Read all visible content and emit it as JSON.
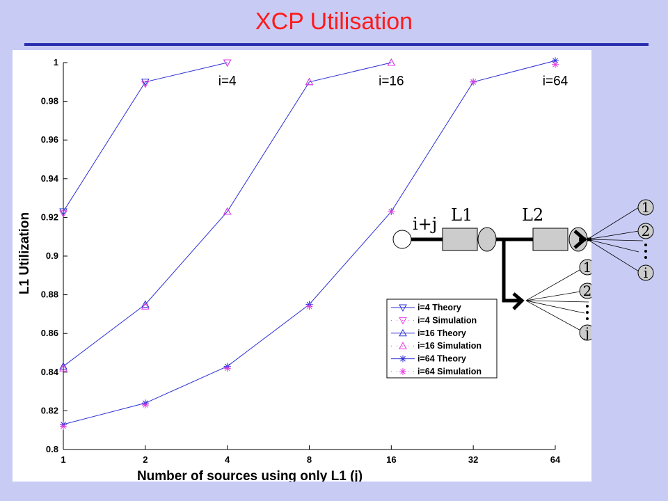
{
  "slide": {
    "title": "XCP Utilisation",
    "title_color": "#ff1a1a",
    "rule_color": "#2a2fb0",
    "background": "#c8ccf5"
  },
  "chart_data": {
    "type": "line",
    "xlabel": "Number of sources using only L1 (j)",
    "ylabel": "L1 Utilization",
    "x_scale": "log2",
    "x_ticks": [
      1,
      2,
      4,
      8,
      16,
      32,
      64
    ],
    "x_tick_labels": [
      "1",
      "2",
      "4",
      "8",
      "16",
      "32",
      "64"
    ],
    "ylim": [
      0.8,
      1.0
    ],
    "y_ticks": [
      0.8,
      0.82,
      0.84,
      0.86,
      0.88,
      0.9,
      0.92,
      0.94,
      0.96,
      0.98,
      1.0
    ],
    "y_tick_labels": [
      "0.8",
      "0.82",
      "0.84",
      "0.86",
      "0.88",
      "0.9",
      "0.92",
      "0.94",
      "0.96",
      "0.98",
      "1"
    ],
    "grid": false,
    "legend_position": "lower-right",
    "series": [
      {
        "name": "i=4 Theory",
        "style": "theory",
        "marker": "triangle-down",
        "color": "#2b2fd6",
        "x": [
          1,
          2,
          4
        ],
        "y": [
          0.923,
          0.99,
          1.0
        ]
      },
      {
        "name": "i=4 Simulation",
        "style": "simulation",
        "marker": "triangle-down",
        "color": "#e23be2",
        "x": [
          1,
          2,
          4
        ],
        "y": [
          0.922,
          0.989,
          1.0
        ]
      },
      {
        "name": "i=16 Theory",
        "style": "theory",
        "marker": "triangle-up",
        "color": "#2b2fd6",
        "x": [
          1,
          2,
          4,
          8,
          16
        ],
        "y": [
          0.843,
          0.875,
          0.923,
          0.99,
          1.0
        ]
      },
      {
        "name": "i=16 Simulation",
        "style": "simulation",
        "marker": "triangle-up",
        "color": "#e23be2",
        "x": [
          1,
          2,
          4,
          8,
          16
        ],
        "y": [
          0.842,
          0.874,
          0.923,
          0.99,
          1.0
        ]
      },
      {
        "name": "i=64 Theory",
        "style": "theory",
        "marker": "star",
        "color": "#2b2fd6",
        "x": [
          1,
          2,
          4,
          8,
          16,
          32,
          64
        ],
        "y": [
          0.813,
          0.824,
          0.843,
          0.875,
          0.923,
          0.99,
          1.001
        ]
      },
      {
        "name": "i=64 Simulation",
        "style": "simulation",
        "marker": "star",
        "color": "#e23be2",
        "x": [
          1,
          2,
          4,
          8,
          16,
          32,
          64
        ],
        "y": [
          0.812,
          0.823,
          0.842,
          0.874,
          0.923,
          0.99,
          0.999
        ]
      }
    ],
    "annotations": [
      {
        "text": "i=4",
        "x": 4,
        "y": 0.9905
      },
      {
        "text": "i=16",
        "x": 16,
        "y": 0.9905
      },
      {
        "text": "i=64",
        "x": 64,
        "y": 0.9905
      }
    ]
  },
  "diagram": {
    "source_label": "i+j",
    "link1_label": "L1",
    "link2_label": "L2",
    "upper_nodes": [
      "1",
      "2",
      "i"
    ],
    "lower_nodes": [
      "1",
      "2",
      "j"
    ],
    "node_fill": "#cccccc",
    "box_fill": "#cccccc"
  }
}
